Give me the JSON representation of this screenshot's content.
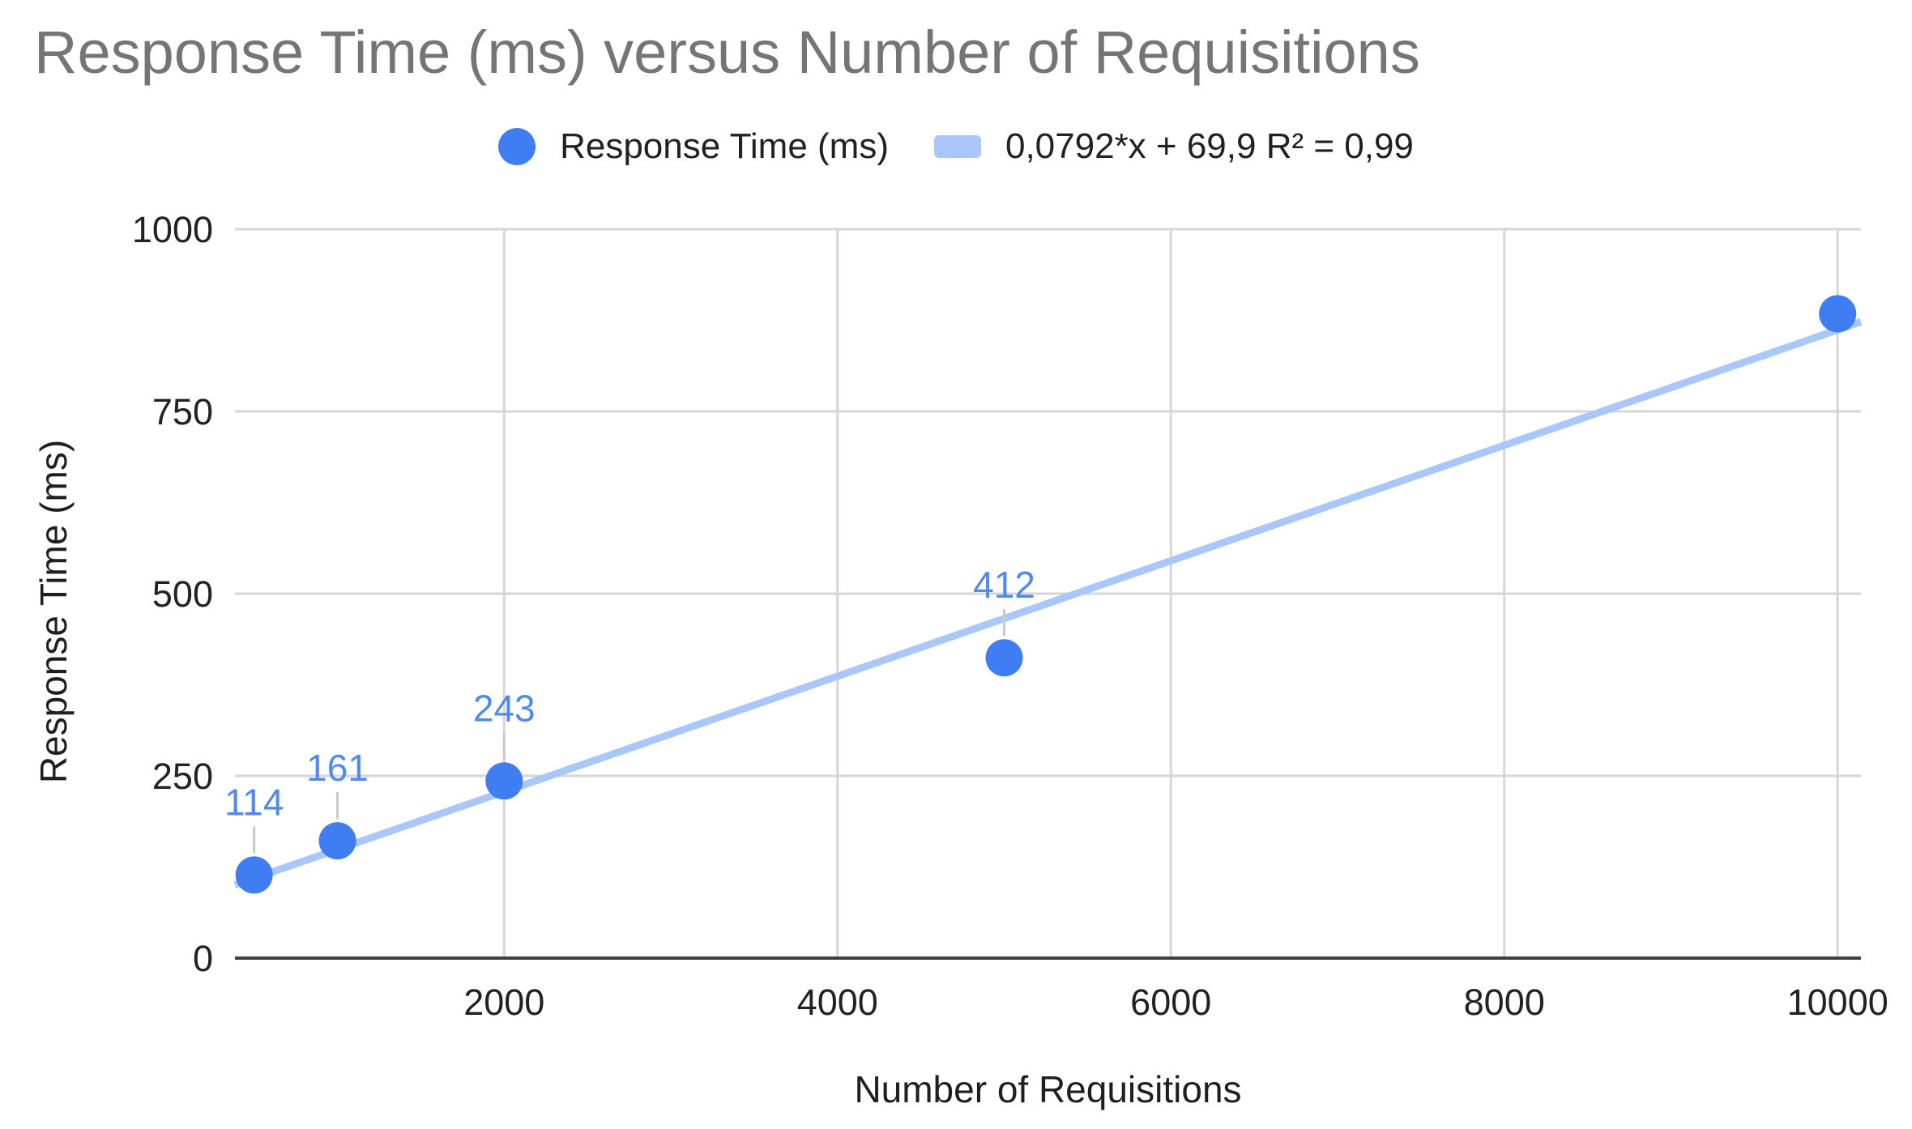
{
  "title": "Response Time (ms) versus Number of Requisitions",
  "legend": {
    "series_label": "Response Time (ms)",
    "trendline_label": "0,0792*x + 69,9 R² = 0,99"
  },
  "axes": {
    "x_title": "Number of Requisitions",
    "y_title": "Response Time (ms)",
    "x_tick_labels": [
      "2000",
      "4000",
      "6000",
      "8000",
      "10000"
    ],
    "y_tick_labels": [
      "0",
      "250",
      "500",
      "750",
      "1000"
    ]
  },
  "colors": {
    "series": "#3f7df2",
    "data_label": "#4e8af2",
    "trendline": "#a9c7fa",
    "title_text": "#757575",
    "legend_text": "#212121",
    "tick_text": "#222222",
    "axis_title_text": "#1f1f1f",
    "gridline": "#d6d6d6",
    "baseline": "#404040",
    "leader_line": "#c9c9c9",
    "background": "#ffffff"
  },
  "chart_data": {
    "type": "scatter",
    "title": "Response Time (ms) versus Number of Requisitions",
    "xlabel": "Number of Requisitions",
    "ylabel": "Response Time (ms)",
    "series": [
      {
        "name": "Response Time (ms)",
        "x": [
          500,
          1000,
          2000,
          5000,
          10000
        ],
        "y": [
          114,
          161,
          243,
          412,
          884
        ],
        "point_labels": [
          "114",
          "161",
          "243",
          "412",
          ""
        ]
      }
    ],
    "trendline": {
      "slope": 0.0792,
      "intercept": 69.9,
      "r_squared": 0.99,
      "label": "0,0792*x + 69,9 R² = 0,99"
    },
    "xlim": [
      385,
      10140
    ],
    "ylim": [
      0,
      1000
    ],
    "x_ticks": [
      2000,
      4000,
      6000,
      8000,
      10000
    ],
    "y_ticks": [
      0,
      250,
      500,
      750,
      1000
    ],
    "grid": true,
    "legend_position": "top"
  }
}
